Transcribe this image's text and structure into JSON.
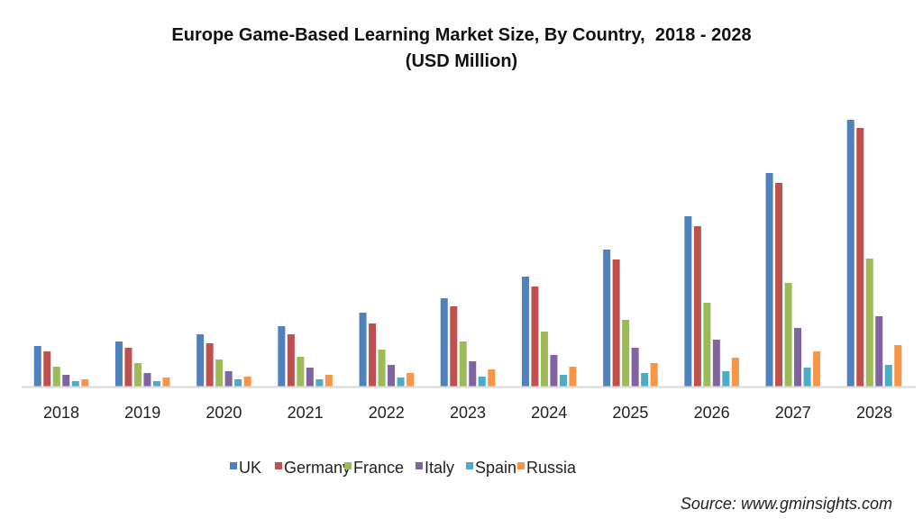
{
  "chart_data": {
    "type": "bar",
    "title": "Europe Game-Based Learning Market Size, By Country,  2018 - 2028",
    "subtitle": "(USD Million)",
    "xlabel": "",
    "ylabel": "",
    "y_axis_shown": false,
    "values_note": "relative magnitudes estimated (no y-axis labels shown)",
    "ylim": [
      0,
      300
    ],
    "grid": false,
    "legend_position": "bottom",
    "categories": [
      "2018",
      "2019",
      "2020",
      "2021",
      "2022",
      "2023",
      "2024",
      "2025",
      "2026",
      "2027",
      "2028"
    ],
    "series": [
      {
        "name": "UK",
        "color": "#4f81bd",
        "values": [
          45,
          50,
          58,
          67,
          82,
          98,
          122,
          152,
          189,
          237,
          296
        ]
      },
      {
        "name": "Germany",
        "color": "#c0504d",
        "values": [
          39,
          43,
          48,
          58,
          70,
          89,
          111,
          141,
          178,
          226,
          287
        ]
      },
      {
        "name": "France",
        "color": "#9bbb59",
        "values": [
          22,
          26,
          30,
          33,
          41,
          50,
          61,
          74,
          93,
          115,
          142
        ]
      },
      {
        "name": "Italy",
        "color": "#8064a2",
        "values": [
          13,
          15,
          17,
          21,
          24,
          28,
          35,
          43,
          52,
          65,
          78
        ]
      },
      {
        "name": "Spain",
        "color": "#4bacc6",
        "values": [
          6,
          6,
          8,
          8,
          10,
          11,
          13,
          15,
          17,
          21,
          24
        ]
      },
      {
        "name": "Russia",
        "color": "#f79646",
        "values": [
          8,
          10,
          11,
          13,
          15,
          19,
          22,
          26,
          32,
          39,
          46
        ]
      }
    ],
    "source": "Source: www.gminsights.com"
  }
}
